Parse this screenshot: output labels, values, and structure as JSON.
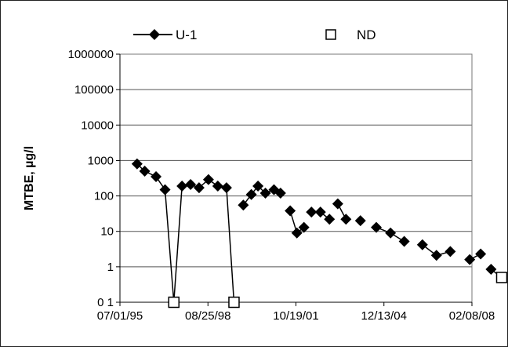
{
  "chart_data": {
    "type": "line",
    "ylabel": "MTBE, µg/l",
    "xlabel": "",
    "title": "",
    "yscale": "log",
    "ylim": [
      0.1,
      1000000
    ],
    "xlim": [
      "1995-07-01",
      "2008-02-08"
    ],
    "grid": {
      "y": true,
      "x": false
    },
    "legend_position": "top",
    "x_tick_labels": [
      "07/01/95",
      "08/25/98",
      "10/19/01",
      "12/13/04",
      "02/08/08"
    ],
    "y_tick_labels": [
      "0 1",
      "1",
      "10",
      "100",
      "1000",
      "10000",
      "100000",
      "1000000"
    ],
    "series": [
      {
        "name": "U-1",
        "marker": "diamond",
        "color": "#000000",
        "segments": [
          [
            {
              "x": "1996-02-10",
              "y": 800
            },
            {
              "x": "1996-05-20",
              "y": 500
            },
            {
              "x": "1996-10-15",
              "y": 350
            },
            {
              "x": "1997-02-10",
              "y": 150
            },
            {
              "x": "1997-06-05",
              "y": 0.1
            },
            {
              "x": "1997-09-20",
              "y": 190
            },
            {
              "x": "1998-01-10",
              "y": 210
            },
            {
              "x": "1998-05-01",
              "y": 170
            },
            {
              "x": "1998-09-01",
              "y": 290
            },
            {
              "x": "1999-01-01",
              "y": 190
            },
            {
              "x": "1999-04-25",
              "y": 170
            },
            {
              "x": "1999-08-01",
              "y": 0.1
            }
          ],
          [
            {
              "x": "1999-12-01",
              "y": 55
            },
            {
              "x": "2000-03-15",
              "y": 110
            },
            {
              "x": "2000-06-10",
              "y": 190
            },
            {
              "x": "2000-09-15",
              "y": 120
            },
            {
              "x": "2001-01-05",
              "y": 150
            },
            {
              "x": "2001-04-01",
              "y": 120
            }
          ],
          [
            {
              "x": "2001-08-05",
              "y": 38
            },
            {
              "x": "2001-11-01",
              "y": 9
            },
            {
              "x": "2002-02-01",
              "y": 13
            }
          ],
          [
            {
              "x": "2002-05-10",
              "y": 35
            },
            {
              "x": "2002-09-05",
              "y": 35
            },
            {
              "x": "2003-01-01",
              "y": 22
            }
          ],
          [
            {
              "x": "2003-04-20",
              "y": 60
            },
            {
              "x": "2003-08-05",
              "y": 22
            }
          ],
          [
            {
              "x": "2004-02-10",
              "y": 20
            }
          ],
          [
            {
              "x": "2004-09-05",
              "y": 13
            },
            {
              "x": "2005-03-10",
              "y": 9
            },
            {
              "x": "2005-09-05",
              "y": 5.2
            }
          ],
          [
            {
              "x": "2006-05-01",
              "y": 4.2
            },
            {
              "x": "2006-11-01",
              "y": 2.1
            },
            {
              "x": "2007-05-01",
              "y": 2.7
            }
          ],
          [
            {
              "x": "2008-01-10",
              "y": 1.6
            },
            {
              "x": "2008-06-01",
              "y": 2.3
            }
          ],
          [
            {
              "x": "2008-10-15",
              "y": 0.85
            },
            {
              "x": "2009-04-01",
              "y": 0.5
            }
          ]
        ]
      },
      {
        "name": "ND",
        "marker": "open-square",
        "color": "#000000",
        "points": [
          {
            "x": "1997-06-05",
            "y": 0.1
          },
          {
            "x": "1999-08-01",
            "y": 0.1
          },
          {
            "x": "2009-04-01",
            "y": 0.5
          }
        ]
      }
    ]
  }
}
